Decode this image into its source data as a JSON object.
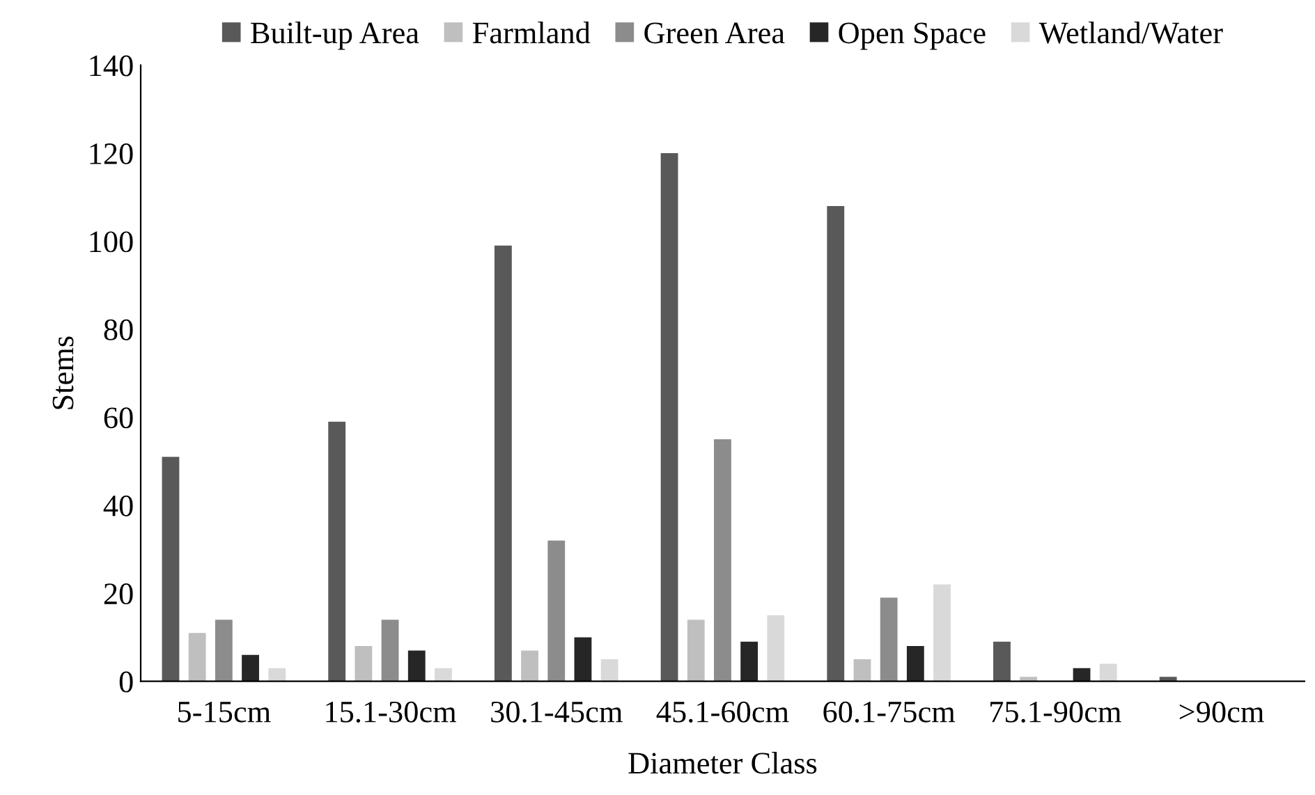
{
  "chart_data": {
    "type": "bar",
    "xlabel": "Diameter Class",
    "ylabel": "Stems",
    "categories": [
      "5-15cm",
      "15.1-30cm",
      "30.1-45cm",
      "45.1-60cm",
      "60.1-75cm",
      "75.1-90cm",
      ">90cm"
    ],
    "series": [
      {
        "name": "Built-up Area",
        "color": "#595959",
        "values": [
          51,
          59,
          99,
          120,
          108,
          9,
          1
        ]
      },
      {
        "name": "Farmland",
        "color": "#bfbfbf",
        "values": [
          11,
          8,
          7,
          14,
          5,
          1,
          0
        ]
      },
      {
        "name": "Green Area",
        "color": "#8c8c8c",
        "values": [
          14,
          14,
          32,
          55,
          19,
          0,
          0
        ]
      },
      {
        "name": "Open Space",
        "color": "#262626",
        "values": [
          6,
          7,
          10,
          9,
          8,
          3,
          0
        ]
      },
      {
        "name": "Wetland/Water",
        "color": "#d9d9d9",
        "values": [
          3,
          3,
          5,
          15,
          22,
          4,
          0
        ]
      }
    ],
    "ylim": [
      0,
      140
    ],
    "yticks": [
      0,
      20,
      40,
      60,
      80,
      100,
      120,
      140
    ],
    "grid": false,
    "legend": "top"
  }
}
